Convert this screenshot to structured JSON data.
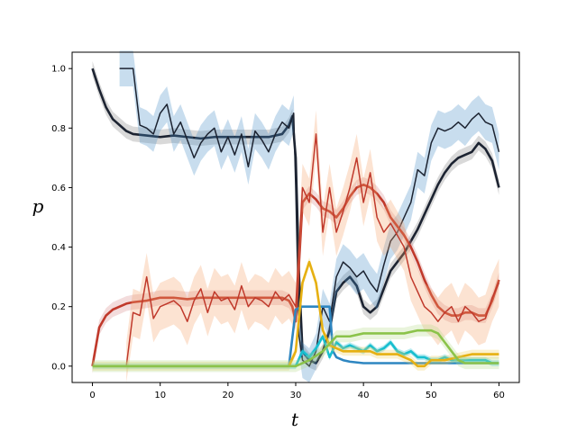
{
  "chart_data": {
    "type": "line",
    "title": "",
    "xlabel": "t",
    "ylabel": "p",
    "xlim": [
      -3,
      63
    ],
    "ylim": [
      -0.055,
      1.055
    ],
    "xticks": [
      0,
      10,
      20,
      30,
      40,
      50,
      60
    ],
    "yticks": [
      0.0,
      0.2,
      0.4,
      0.6,
      0.8,
      1.0
    ],
    "grid": false,
    "legend": "none",
    "series": [
      {
        "color": "#1c2331",
        "style": "thick",
        "band_color": "#808080",
        "x": [
          0,
          1,
          2,
          3,
          4,
          5,
          6,
          8,
          10,
          12,
          14,
          16,
          18,
          20,
          22,
          24,
          26,
          28,
          29,
          29.5,
          30,
          30.5,
          31,
          32,
          33,
          34,
          35,
          36,
          37,
          38,
          39,
          40,
          41,
          42,
          43,
          44,
          45,
          46,
          47,
          48,
          49,
          50,
          51,
          52,
          53,
          54,
          55,
          56,
          57,
          58,
          59,
          60
        ],
        "y": [
          1.0,
          0.93,
          0.87,
          0.83,
          0.81,
          0.79,
          0.78,
          0.775,
          0.77,
          0.775,
          0.77,
          0.765,
          0.77,
          0.77,
          0.77,
          0.77,
          0.77,
          0.78,
          0.81,
          0.84,
          0.7,
          0.3,
          0.05,
          0.02,
          0.01,
          0.05,
          0.12,
          0.25,
          0.28,
          0.3,
          0.27,
          0.2,
          0.18,
          0.2,
          0.26,
          0.32,
          0.35,
          0.38,
          0.42,
          0.46,
          0.51,
          0.56,
          0.61,
          0.65,
          0.68,
          0.7,
          0.71,
          0.72,
          0.75,
          0.73,
          0.69,
          0.6
        ],
        "band": 0.025
      },
      {
        "color": "#1c2331",
        "style": "thin",
        "band_color": "#4a90c8",
        "x": [
          4,
          5,
          6,
          7,
          8,
          9,
          10,
          11,
          12,
          13,
          14,
          15,
          16,
          17,
          18,
          19,
          20,
          21,
          22,
          23,
          24,
          25,
          26,
          27,
          28,
          29,
          29.7,
          30,
          30.5,
          31,
          32,
          33,
          34,
          35,
          36,
          37,
          38,
          39,
          40,
          41,
          42,
          43,
          44,
          45,
          46,
          47,
          48,
          49,
          50,
          51,
          52,
          53,
          54,
          55,
          56,
          57,
          58,
          59,
          60
        ],
        "y": [
          1.0,
          1.0,
          1.0,
          0.81,
          0.8,
          0.78,
          0.85,
          0.88,
          0.78,
          0.82,
          0.76,
          0.7,
          0.75,
          0.78,
          0.8,
          0.72,
          0.77,
          0.71,
          0.78,
          0.67,
          0.79,
          0.76,
          0.72,
          0.78,
          0.82,
          0.8,
          0.85,
          0.6,
          0.1,
          0.02,
          0.0,
          0.05,
          0.2,
          0.15,
          0.3,
          0.35,
          0.33,
          0.3,
          0.32,
          0.28,
          0.25,
          0.34,
          0.42,
          0.45,
          0.5,
          0.55,
          0.66,
          0.64,
          0.75,
          0.8,
          0.79,
          0.8,
          0.82,
          0.8,
          0.83,
          0.85,
          0.82,
          0.81,
          0.72
        ],
        "band": 0.06
      },
      {
        "color": "#c0392b",
        "style": "thick",
        "band_color": "#d78a8a",
        "x": [
          0,
          1,
          2,
          3,
          4,
          5,
          6,
          8,
          10,
          12,
          14,
          16,
          18,
          20,
          22,
          24,
          26,
          28,
          29,
          29.5,
          30,
          30.5,
          31,
          32,
          33,
          34,
          35,
          36,
          37,
          38,
          39,
          40,
          41,
          42,
          43,
          44,
          45,
          46,
          47,
          48,
          49,
          50,
          51,
          52,
          53,
          54,
          55,
          56,
          57,
          58,
          59,
          60
        ],
        "y": [
          0.0,
          0.13,
          0.17,
          0.19,
          0.2,
          0.21,
          0.215,
          0.22,
          0.23,
          0.23,
          0.225,
          0.23,
          0.23,
          0.23,
          0.23,
          0.23,
          0.23,
          0.23,
          0.22,
          0.2,
          0.15,
          0.35,
          0.55,
          0.58,
          0.56,
          0.53,
          0.52,
          0.5,
          0.53,
          0.57,
          0.6,
          0.61,
          0.6,
          0.58,
          0.55,
          0.5,
          0.47,
          0.44,
          0.4,
          0.35,
          0.29,
          0.24,
          0.2,
          0.18,
          0.17,
          0.17,
          0.18,
          0.18,
          0.17,
          0.17,
          0.22,
          0.29
        ],
        "band": 0.025
      },
      {
        "color": "#c0392b",
        "style": "thin",
        "band_color": "#f5a26a",
        "x": [
          5,
          6,
          7,
          8,
          9,
          10,
          11,
          12,
          13,
          14,
          15,
          16,
          17,
          18,
          19,
          20,
          21,
          22,
          23,
          24,
          25,
          26,
          27,
          28,
          29,
          30,
          31,
          32,
          33,
          34,
          35,
          36,
          37,
          38,
          39,
          40,
          41,
          42,
          43,
          44,
          45,
          46,
          47,
          48,
          49,
          50,
          51,
          52,
          53,
          54,
          55,
          56,
          57,
          58,
          59,
          60
        ],
        "y": [
          0.0,
          0.18,
          0.17,
          0.3,
          0.16,
          0.2,
          0.21,
          0.22,
          0.2,
          0.15,
          0.22,
          0.26,
          0.18,
          0.25,
          0.22,
          0.23,
          0.19,
          0.27,
          0.2,
          0.23,
          0.22,
          0.2,
          0.25,
          0.22,
          0.24,
          0.2,
          0.6,
          0.55,
          0.78,
          0.45,
          0.6,
          0.45,
          0.52,
          0.6,
          0.7,
          0.55,
          0.65,
          0.5,
          0.45,
          0.48,
          0.44,
          0.4,
          0.3,
          0.25,
          0.2,
          0.18,
          0.15,
          0.18,
          0.2,
          0.15,
          0.2,
          0.18,
          0.15,
          0.16,
          0.23,
          0.28
        ],
        "band": 0.08
      },
      {
        "color": "#2e86c1",
        "style": "thick",
        "band_color": "#2e86c1",
        "x": [
          0,
          29,
          30,
          31,
          32,
          33,
          34,
          35,
          35.5,
          36,
          37,
          38,
          40,
          45,
          50,
          55,
          60
        ],
        "y": [
          0,
          0,
          0.19,
          0.2,
          0.2,
          0.2,
          0.2,
          0.2,
          0.05,
          0.03,
          0.02,
          0.015,
          0.01,
          0.01,
          0.01,
          0.01,
          0.01
        ],
        "band": 0.0
      },
      {
        "color": "#17becf",
        "style": "thick",
        "band_color": "#17becf",
        "x": [
          0,
          30,
          31,
          32,
          33,
          34,
          35,
          36,
          37,
          38,
          39,
          40,
          41,
          42,
          43,
          44,
          45,
          46,
          47,
          48,
          49,
          50,
          51,
          52,
          53,
          54,
          55,
          56,
          57,
          58,
          59,
          60
        ],
        "y": [
          0,
          0,
          0.05,
          0.03,
          0.06,
          0.1,
          0.03,
          0.08,
          0.06,
          0.07,
          0.06,
          0.05,
          0.07,
          0.05,
          0.06,
          0.08,
          0.05,
          0.04,
          0.05,
          0.03,
          0.03,
          0.02,
          0.02,
          0.03,
          0.02,
          0.02,
          0.02,
          0.02,
          0.02,
          0.02,
          0.01,
          0.01
        ],
        "band": 0.01
      },
      {
        "color": "#e6b012",
        "style": "thick",
        "band_color": "#f2d160",
        "x": [
          0,
          29,
          30,
          31,
          32,
          33,
          34,
          35,
          36,
          37,
          38,
          39,
          40,
          41,
          42,
          43,
          44,
          45,
          46,
          47,
          48,
          49,
          50,
          52,
          54,
          56,
          58,
          60
        ],
        "y": [
          0,
          0,
          0.05,
          0.28,
          0.35,
          0.28,
          0.12,
          0.07,
          0.06,
          0.05,
          0.05,
          0.05,
          0.05,
          0.05,
          0.04,
          0.04,
          0.04,
          0.04,
          0.03,
          0.02,
          0.0,
          0.0,
          0.02,
          0.02,
          0.03,
          0.04,
          0.04,
          0.04
        ],
        "band": 0.015
      },
      {
        "color": "#8bc34a",
        "style": "thick",
        "band_color": "#b5dc8a",
        "x": [
          0,
          30,
          32,
          34,
          36,
          38,
          40,
          42,
          44,
          46,
          48,
          50,
          51,
          52,
          53,
          54,
          55,
          60
        ],
        "y": [
          0,
          0,
          0.02,
          0.05,
          0.1,
          0.1,
          0.11,
          0.11,
          0.11,
          0.11,
          0.12,
          0.12,
          0.11,
          0.08,
          0.05,
          0.02,
          0.01,
          0.01
        ],
        "band": 0.02
      }
    ]
  }
}
